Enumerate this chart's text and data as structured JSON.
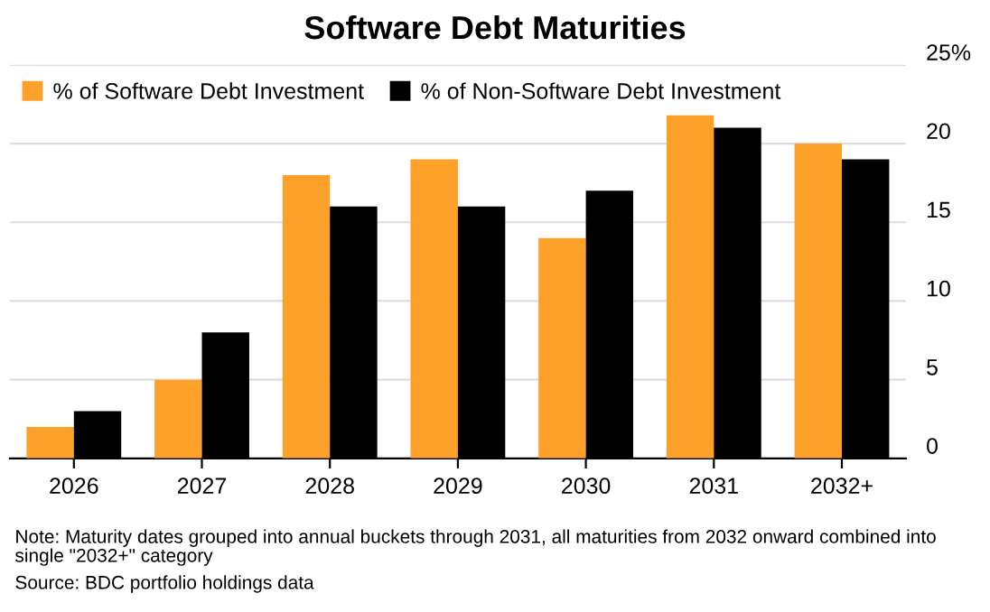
{
  "chart_data": {
    "type": "bar",
    "title": "Software Debt Maturities",
    "categories": [
      "2026",
      "2027",
      "2028",
      "2029",
      "2030",
      "2031",
      "2032+"
    ],
    "series": [
      {
        "name": "% of Software Debt Investment",
        "color": "#fda12b",
        "values": [
          2,
          5,
          18,
          19,
          14,
          21.8,
          20
        ]
      },
      {
        "name": "% of Non-Software Debt Investment",
        "color": "#000000",
        "values": [
          3,
          8,
          16,
          16,
          17,
          21,
          19
        ]
      }
    ],
    "ylim": [
      0,
      25
    ],
    "yticks": [
      0,
      5,
      10,
      15,
      20,
      {
        "value": 25,
        "label": "25%"
      }
    ],
    "grid": "y",
    "legend": "top left",
    "annotations": [
      "Note: Maturity dates grouped into annual buckets through 2031, all maturities from 2032 onward combined into single \"2032+\" category",
      "Source: BDC portfolio holdings data"
    ]
  }
}
